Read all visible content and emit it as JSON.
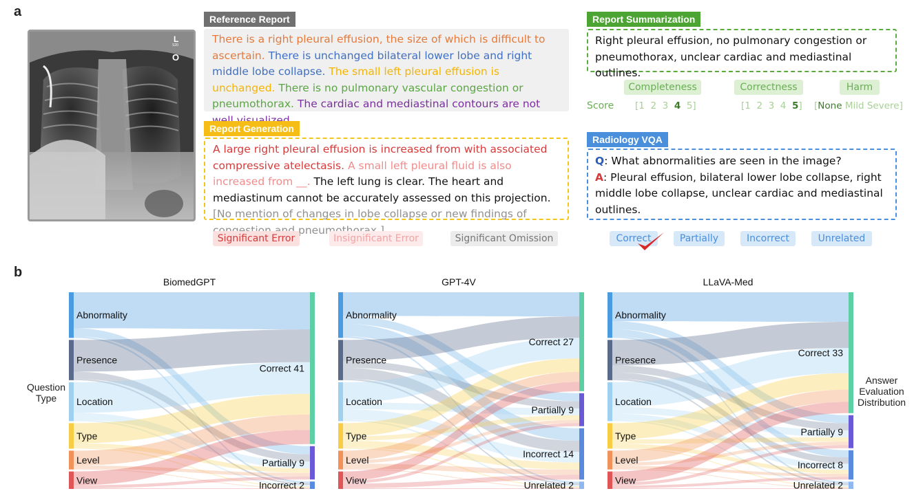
{
  "panel_a": {
    "letter": "a",
    "xray_marker_letter": "L",
    "xray_marker_small": "S20",
    "xray_marker_o": "O",
    "reference_report": {
      "tag": "Reference Report",
      "s1": "There is a right pleural effusion, the size of which is difficult to ascertain.",
      "s2": "There is unchanged bilateral lower lobe and right middle lobe collapse.",
      "s3": "The small left pleural effusion is unchanged.",
      "s4": "There is no pulmonary vascular congestion or pneumothorax.",
      "s5": "The cardiac and mediastinal contours are not well visualized."
    },
    "report_generation": {
      "tag": "Report Generation",
      "s1": "A large right pleural effusion is increased from with associated compressive atelectasis.",
      "s2": "A small left pleural fluid is also increased from __.",
      "s3": "The left lung is clear. The heart and mediastinum cannot be accurately assessed on this projection.",
      "s4": "[No mention of changes in lobe collapse or new findings of congestion and pneumothorax.]"
    },
    "error_legend": [
      "Significant Error",
      "Insignificant Error",
      "Significant Omission"
    ],
    "report_summarization": {
      "tag": "Report Summarization",
      "text": "Right pleural effusion, no pulmonary congestion or pneumothorax, unclear cardiac and mediastinal outlines.",
      "criteria": [
        "Completeness",
        "Correctness",
        "Harm"
      ],
      "score_label": "Score",
      "completeness_scale": {
        "open": "[",
        "pre": "1  2  3",
        "sel": "4",
        "post": "5",
        "close": "]"
      },
      "correctness_scale": {
        "open": "[",
        "pre": "1  2  3  4",
        "sel": "5",
        "close": "]"
      },
      "harm_scale": {
        "open": "[",
        "sel": "None",
        "post": "Mild Severe",
        "close": "]"
      }
    },
    "radiology_vqa": {
      "tag": "Radiology VQA",
      "q_label": "Q",
      "question": ": What abnormalities are seen in the image?",
      "a_label": "A",
      "answer": ": Pleural effusion, bilateral lower lobe collapse, right middle lobe collapse, unclear cardiac and mediastinal outlines.",
      "options": [
        "Correct",
        "Partially",
        "Incorrect",
        "Unrelated"
      ],
      "selected": "Correct"
    }
  },
  "panel_b": {
    "letter": "b",
    "left_axis_label_1": "Question",
    "left_axis_label_2": "Type",
    "right_axis_label_1": "Answer",
    "right_axis_label_2": "Evaluation",
    "right_axis_label_3": "Distribution",
    "source_colors": [
      "#4a9be0",
      "#5a6a8a",
      "#9fd0f0",
      "#f7cd45",
      "#f1925a",
      "#e05555"
    ],
    "target_colors": [
      "#5ccfa5",
      "#6a5ad8",
      "#5a8ae0",
      "#8fb8f0"
    ],
    "charts": [
      {
        "title": "BiomedGPT",
        "sources": [
          "Abnormality",
          "Presence",
          "Location",
          "Type",
          "Level",
          "View"
        ],
        "targets": [
          {
            "label": "Correct 41",
            "value": 41
          },
          {
            "label": "Partially 9",
            "value": 9
          },
          {
            "label": "Incorrect 2",
            "value": 2
          }
        ]
      },
      {
        "title": "GPT-4V",
        "sources": [
          "Abnormality",
          "Presence",
          "Location",
          "Type",
          "Level",
          "View"
        ],
        "targets": [
          {
            "label": "Correct 27",
            "value": 27
          },
          {
            "label": "Partially 9",
            "value": 9
          },
          {
            "label": "Incorrect 14",
            "value": 14
          },
          {
            "label": "Unrelated 2",
            "value": 2
          }
        ]
      },
      {
        "title": "LLaVA-Med",
        "sources": [
          "Abnormality",
          "Presence",
          "Location",
          "Type",
          "Level",
          "View"
        ],
        "targets": [
          {
            "label": "Correct 33",
            "value": 33
          },
          {
            "label": "Partially 9",
            "value": 9
          },
          {
            "label": "Incorrect 8",
            "value": 8
          },
          {
            "label": "Unrelated 2",
            "value": 2
          }
        ]
      }
    ]
  }
}
